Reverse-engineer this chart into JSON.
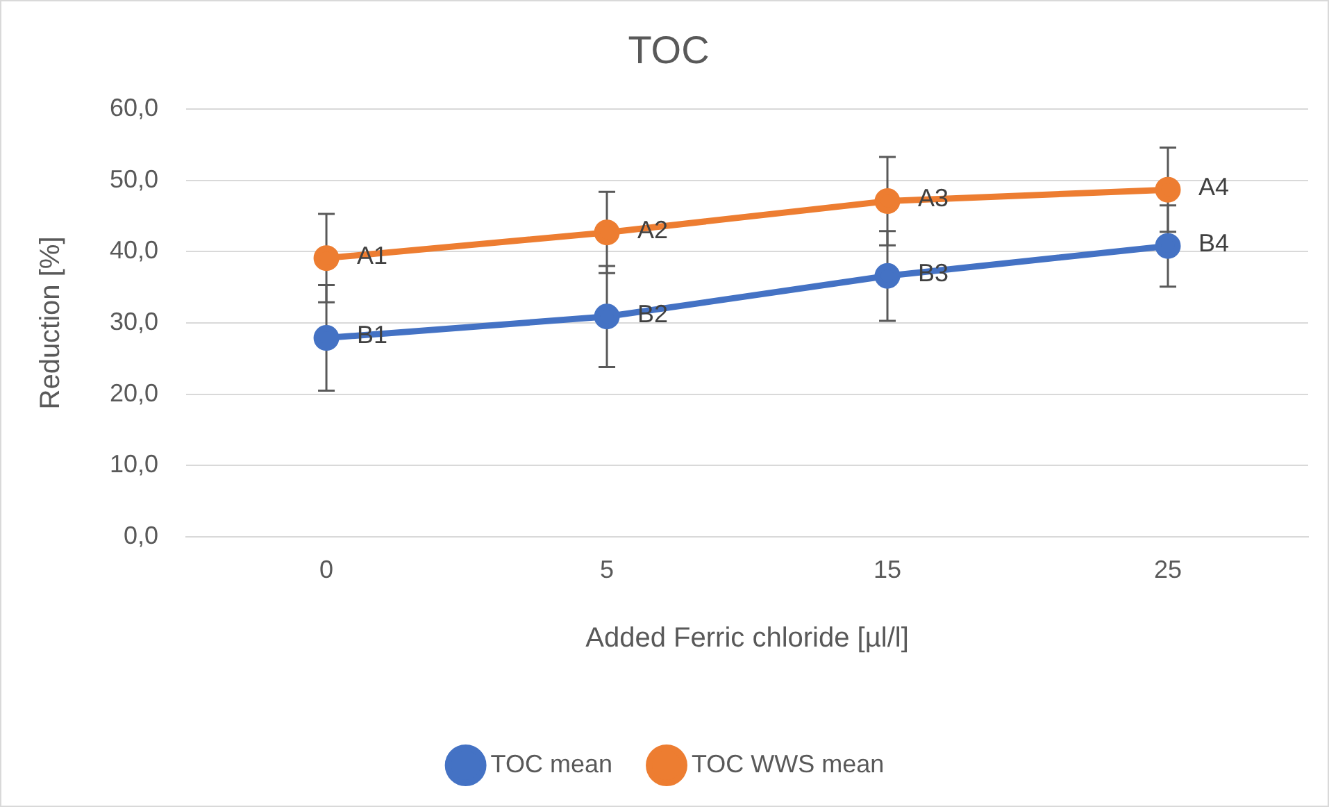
{
  "chart_data": {
    "type": "line",
    "title": "TOC",
    "xlabel": "Added Ferric chloride [µl/l]",
    "ylabel": "Reduction [%]",
    "categories": [
      "0",
      "5",
      "15",
      "25"
    ],
    "series": [
      {
        "name": "TOC mean",
        "color": "#4472c4",
        "values": [
          27.9,
          30.9,
          36.6,
          40.8
        ],
        "errors": [
          7.4,
          7.1,
          6.3,
          5.7
        ],
        "value_labels": [
          "B1",
          "B2",
          "B3",
          "B4"
        ]
      },
      {
        "name": "TOC WWS mean",
        "color": "#ed7d31",
        "values": [
          39.1,
          42.7,
          47.1,
          48.7
        ],
        "errors": [
          6.2,
          5.7,
          6.2,
          5.9
        ],
        "value_labels": [
          "A1",
          "A2",
          "A3",
          "A4"
        ]
      }
    ],
    "ylim": [
      0,
      60
    ],
    "yticks": [
      {
        "value": 0,
        "label": "0,0"
      },
      {
        "value": 10,
        "label": "10,0"
      },
      {
        "value": 20,
        "label": "20,0"
      },
      {
        "value": 30,
        "label": "30,0"
      },
      {
        "value": 40,
        "label": "40,0"
      },
      {
        "value": 50,
        "label": "50,0"
      },
      {
        "value": 60,
        "label": "60,0"
      }
    ],
    "grid": "y",
    "legend": "bottom",
    "marker": "circle",
    "line_style": "solid"
  }
}
